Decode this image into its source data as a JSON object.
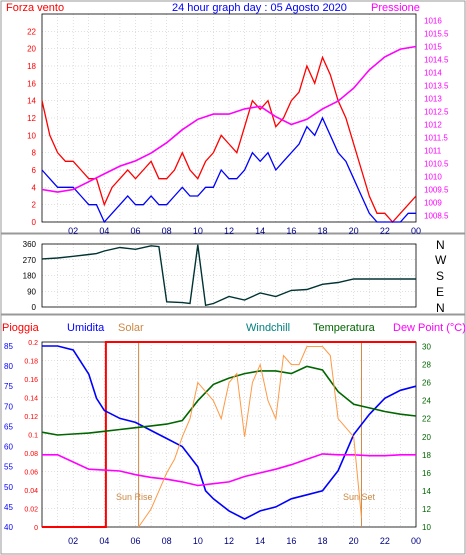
{
  "header": {
    "left_title": "Forza vento",
    "center_title": "24 hour graph day : 05 Agosto 2020",
    "right_title": "Pressione"
  },
  "colors": {
    "wind": "#ff0000",
    "gust": "#0000ff",
    "pressure": "#ff00ff",
    "direction": "#003333",
    "rain": "#ff0000",
    "humidity": "#0000ff",
    "solar": "#ff9944",
    "windchill": "#008080",
    "temperature": "#006600",
    "dewpoint": "#ff00ff",
    "sun_marker": "#cc8844",
    "grid": "#c0c0c0"
  },
  "chart_data": [
    {
      "type": "line",
      "name_top": "wind-pressure",
      "x_tick_labels": [
        "02",
        "04",
        "06",
        "08",
        "10",
        "12",
        "14",
        "16",
        "18",
        "20",
        "22",
        "00"
      ],
      "y_left_ticks": [
        "0",
        "2",
        "4",
        "6",
        "8",
        "10",
        "12",
        "14",
        "16",
        "18",
        "20",
        "22"
      ],
      "y_right_ticks": [
        "1008.5",
        "1009",
        "1009.5",
        "1010",
        "1010.5",
        "1011",
        "1011.5",
        "1012",
        "1012.5",
        "1013",
        "1013.5",
        "1014",
        "1014.5",
        "1015",
        "1015.5",
        "1016"
      ],
      "ylim_left": [
        0,
        24
      ],
      "ylim_right": [
        1008.25,
        1016.25
      ],
      "xlim_hours": [
        0,
        24
      ],
      "series": [
        {
          "key": "wind",
          "hours": [
            0,
            0.5,
            1,
            1.5,
            2,
            2.5,
            3,
            3.5,
            4,
            4.5,
            5,
            5.5,
            6,
            6.5,
            7,
            7.5,
            8,
            8.5,
            9,
            9.5,
            10,
            10.5,
            11,
            11.5,
            12,
            12.5,
            13,
            13.5,
            14,
            14.5,
            15,
            15.5,
            16,
            16.5,
            17,
            17.5,
            18,
            18.5,
            19,
            19.5,
            20,
            20.5,
            21,
            21.5,
            22,
            22.5,
            23,
            23.5,
            24
          ],
          "values": [
            14,
            10,
            8,
            7,
            7,
            6,
            5,
            5,
            2,
            4,
            5,
            6,
            5,
            6,
            7,
            5,
            5,
            6,
            8,
            6,
            5,
            7,
            8,
            10,
            9,
            8,
            11,
            14,
            13,
            14,
            11,
            12,
            14,
            15,
            18,
            16,
            19,
            17,
            14,
            12,
            9,
            6,
            3,
            1,
            1,
            0,
            1,
            2,
            3
          ]
        },
        {
          "key": "gust",
          "hours": [
            0,
            0.5,
            1,
            1.5,
            2,
            2.5,
            3,
            3.5,
            4,
            4.5,
            5,
            5.5,
            6,
            6.5,
            7,
            7.5,
            8,
            8.5,
            9,
            9.5,
            10,
            10.5,
            11,
            11.5,
            12,
            12.5,
            13,
            13.5,
            14,
            14.5,
            15,
            15.5,
            16,
            16.5,
            17,
            17.5,
            18,
            18.5,
            19,
            19.5,
            20,
            20.5,
            21,
            21.5,
            22,
            22.5,
            23,
            23.5,
            24
          ],
          "values": [
            6,
            5,
            4,
            4,
            4,
            3,
            2,
            2,
            0,
            1,
            2,
            3,
            2,
            2,
            3,
            2,
            2,
            3,
            4,
            3,
            3,
            4,
            4,
            6,
            5,
            5,
            6,
            8,
            7,
            8,
            6,
            7,
            8,
            9,
            11,
            10,
            12,
            10,
            8,
            7,
            5,
            3,
            1,
            0,
            0,
            0,
            0,
            1,
            1
          ]
        },
        {
          "key": "pressure",
          "axis": "right",
          "hours": [
            0,
            1,
            2,
            3,
            4,
            5,
            6,
            7,
            8,
            9,
            10,
            11,
            12,
            13,
            14,
            15,
            16,
            17,
            18,
            19,
            20,
            21,
            22,
            23,
            24
          ],
          "values": [
            1009.5,
            1009.4,
            1009.5,
            1009.8,
            1010.1,
            1010.4,
            1010.6,
            1010.9,
            1011.3,
            1011.8,
            1012.2,
            1012.4,
            1012.4,
            1012.6,
            1012.7,
            1012.3,
            1012.0,
            1012.2,
            1012.6,
            1012.9,
            1013.4,
            1014.1,
            1014.6,
            1014.9,
            1015.0
          ]
        }
      ]
    },
    {
      "type": "line",
      "name_top": "wind-direction",
      "y_ticks": [
        "0",
        "90",
        "180",
        "270",
        "360"
      ],
      "ylim": [
        0,
        360
      ],
      "compass_labels": [
        "N",
        "W",
        "S",
        "E",
        "N"
      ],
      "series": [
        {
          "key": "direction",
          "hours": [
            0,
            1,
            2,
            3,
            3.5,
            4,
            5,
            6,
            7,
            7.5,
            8,
            9,
            9.5,
            10,
            10.5,
            11,
            12,
            13,
            14,
            15,
            16,
            17,
            18,
            19,
            20,
            21,
            22,
            23,
            24
          ],
          "values": [
            275,
            280,
            290,
            300,
            305,
            320,
            340,
            330,
            350,
            345,
            30,
            25,
            20,
            355,
            10,
            20,
            60,
            40,
            80,
            60,
            95,
            100,
            130,
            140,
            160,
            160,
            160,
            160,
            160
          ]
        }
      ]
    },
    {
      "type": "line",
      "name_top": "weather",
      "header_labels": [
        "Pioggia",
        "Umidita",
        "Solar",
        "Windchill",
        "Temperatura",
        "Dew Point (°C)"
      ],
      "y_left_rain_ticks": [
        "0",
        "0.02",
        "0.04",
        "0.06",
        "0.08",
        "0.1",
        "0.12",
        "0.14",
        "0.16",
        "0.18",
        "0.2"
      ],
      "y_left_hum_ticks": [
        "40",
        "45",
        "50",
        "55",
        "60",
        "65",
        "70",
        "75",
        "80",
        "85"
      ],
      "y_right_ticks": [
        "10",
        "12",
        "14",
        "16",
        "18",
        "20",
        "22",
        "24",
        "26",
        "28",
        "30"
      ],
      "ylim_rain": [
        0,
        0.2
      ],
      "ylim_humidity": [
        40,
        86
      ],
      "ylim_temp": [
        10,
        30.5
      ],
      "sun_labels": [
        "Sun Rise",
        "Sun Set"
      ],
      "sun_hours": [
        6.2,
        20.5
      ],
      "series": [
        {
          "key": "rain",
          "axis": "rain",
          "hours": [
            0,
            4.1,
            4.1,
            24
          ],
          "values": [
            0,
            0,
            0.2,
            0.2
          ]
        },
        {
          "key": "humidity",
          "axis": "humidity",
          "hours": [
            0,
            1,
            2,
            3,
            3.5,
            4,
            5,
            6,
            7,
            8,
            9,
            10,
            10.5,
            11,
            12,
            13,
            14,
            15,
            16,
            17,
            18,
            19,
            20,
            21,
            22,
            23,
            24
          ],
          "values": [
            85,
            85,
            84,
            78,
            72,
            69,
            67,
            66,
            64,
            62,
            60,
            55,
            49,
            47,
            44,
            42,
            44,
            45,
            47,
            48,
            49,
            54,
            63,
            68,
            72,
            74,
            75
          ]
        },
        {
          "key": "temperature",
          "axis": "temp",
          "hours": [
            0,
            1,
            2,
            3,
            4,
            5,
            6,
            7,
            8,
            9,
            10,
            11,
            12,
            13,
            14,
            15,
            16,
            17,
            18,
            19,
            20,
            21,
            22,
            23,
            24
          ],
          "values": [
            20.5,
            20.2,
            20.3,
            20.4,
            20.6,
            20.8,
            21.0,
            21.2,
            21.4,
            21.8,
            24.0,
            25.8,
            26.5,
            27.0,
            27.3,
            27.3,
            27.0,
            27.8,
            27.4,
            25.0,
            23.6,
            23.2,
            22.8,
            22.5,
            22.3
          ]
        },
        {
          "key": "dewpoint",
          "axis": "temp",
          "hours": [
            0,
            1,
            2,
            3,
            4,
            5,
            6,
            7,
            8,
            9,
            10,
            11,
            12,
            13,
            14,
            15,
            16,
            17,
            18,
            19,
            20,
            21,
            22,
            23,
            24
          ],
          "values": [
            18.0,
            18.0,
            17.2,
            16.4,
            16.3,
            16.2,
            15.8,
            15.5,
            15.3,
            15.0,
            14.6,
            14.8,
            15.0,
            15.6,
            16.0,
            16.4,
            16.9,
            17.5,
            18.1,
            18.0,
            18.0,
            17.9,
            17.9,
            18.0,
            18.0
          ]
        },
        {
          "key": "solar",
          "axis": "temp",
          "hours": [
            6.2,
            7,
            7.5,
            8,
            8.5,
            9,
            9.5,
            10,
            10.5,
            11,
            11.5,
            12,
            12.5,
            13,
            13.5,
            14,
            14.5,
            15,
            15.5,
            16,
            16.5,
            17,
            17.5,
            18,
            18.5,
            19,
            19.5,
            20,
            20.5
          ],
          "values": [
            10,
            12,
            14,
            16,
            17.5,
            20,
            22,
            26,
            25,
            24,
            22,
            26,
            27,
            20,
            26,
            28,
            24,
            22,
            29,
            28,
            28,
            30,
            30,
            30,
            29,
            22,
            21,
            20,
            11
          ]
        }
      ]
    }
  ]
}
